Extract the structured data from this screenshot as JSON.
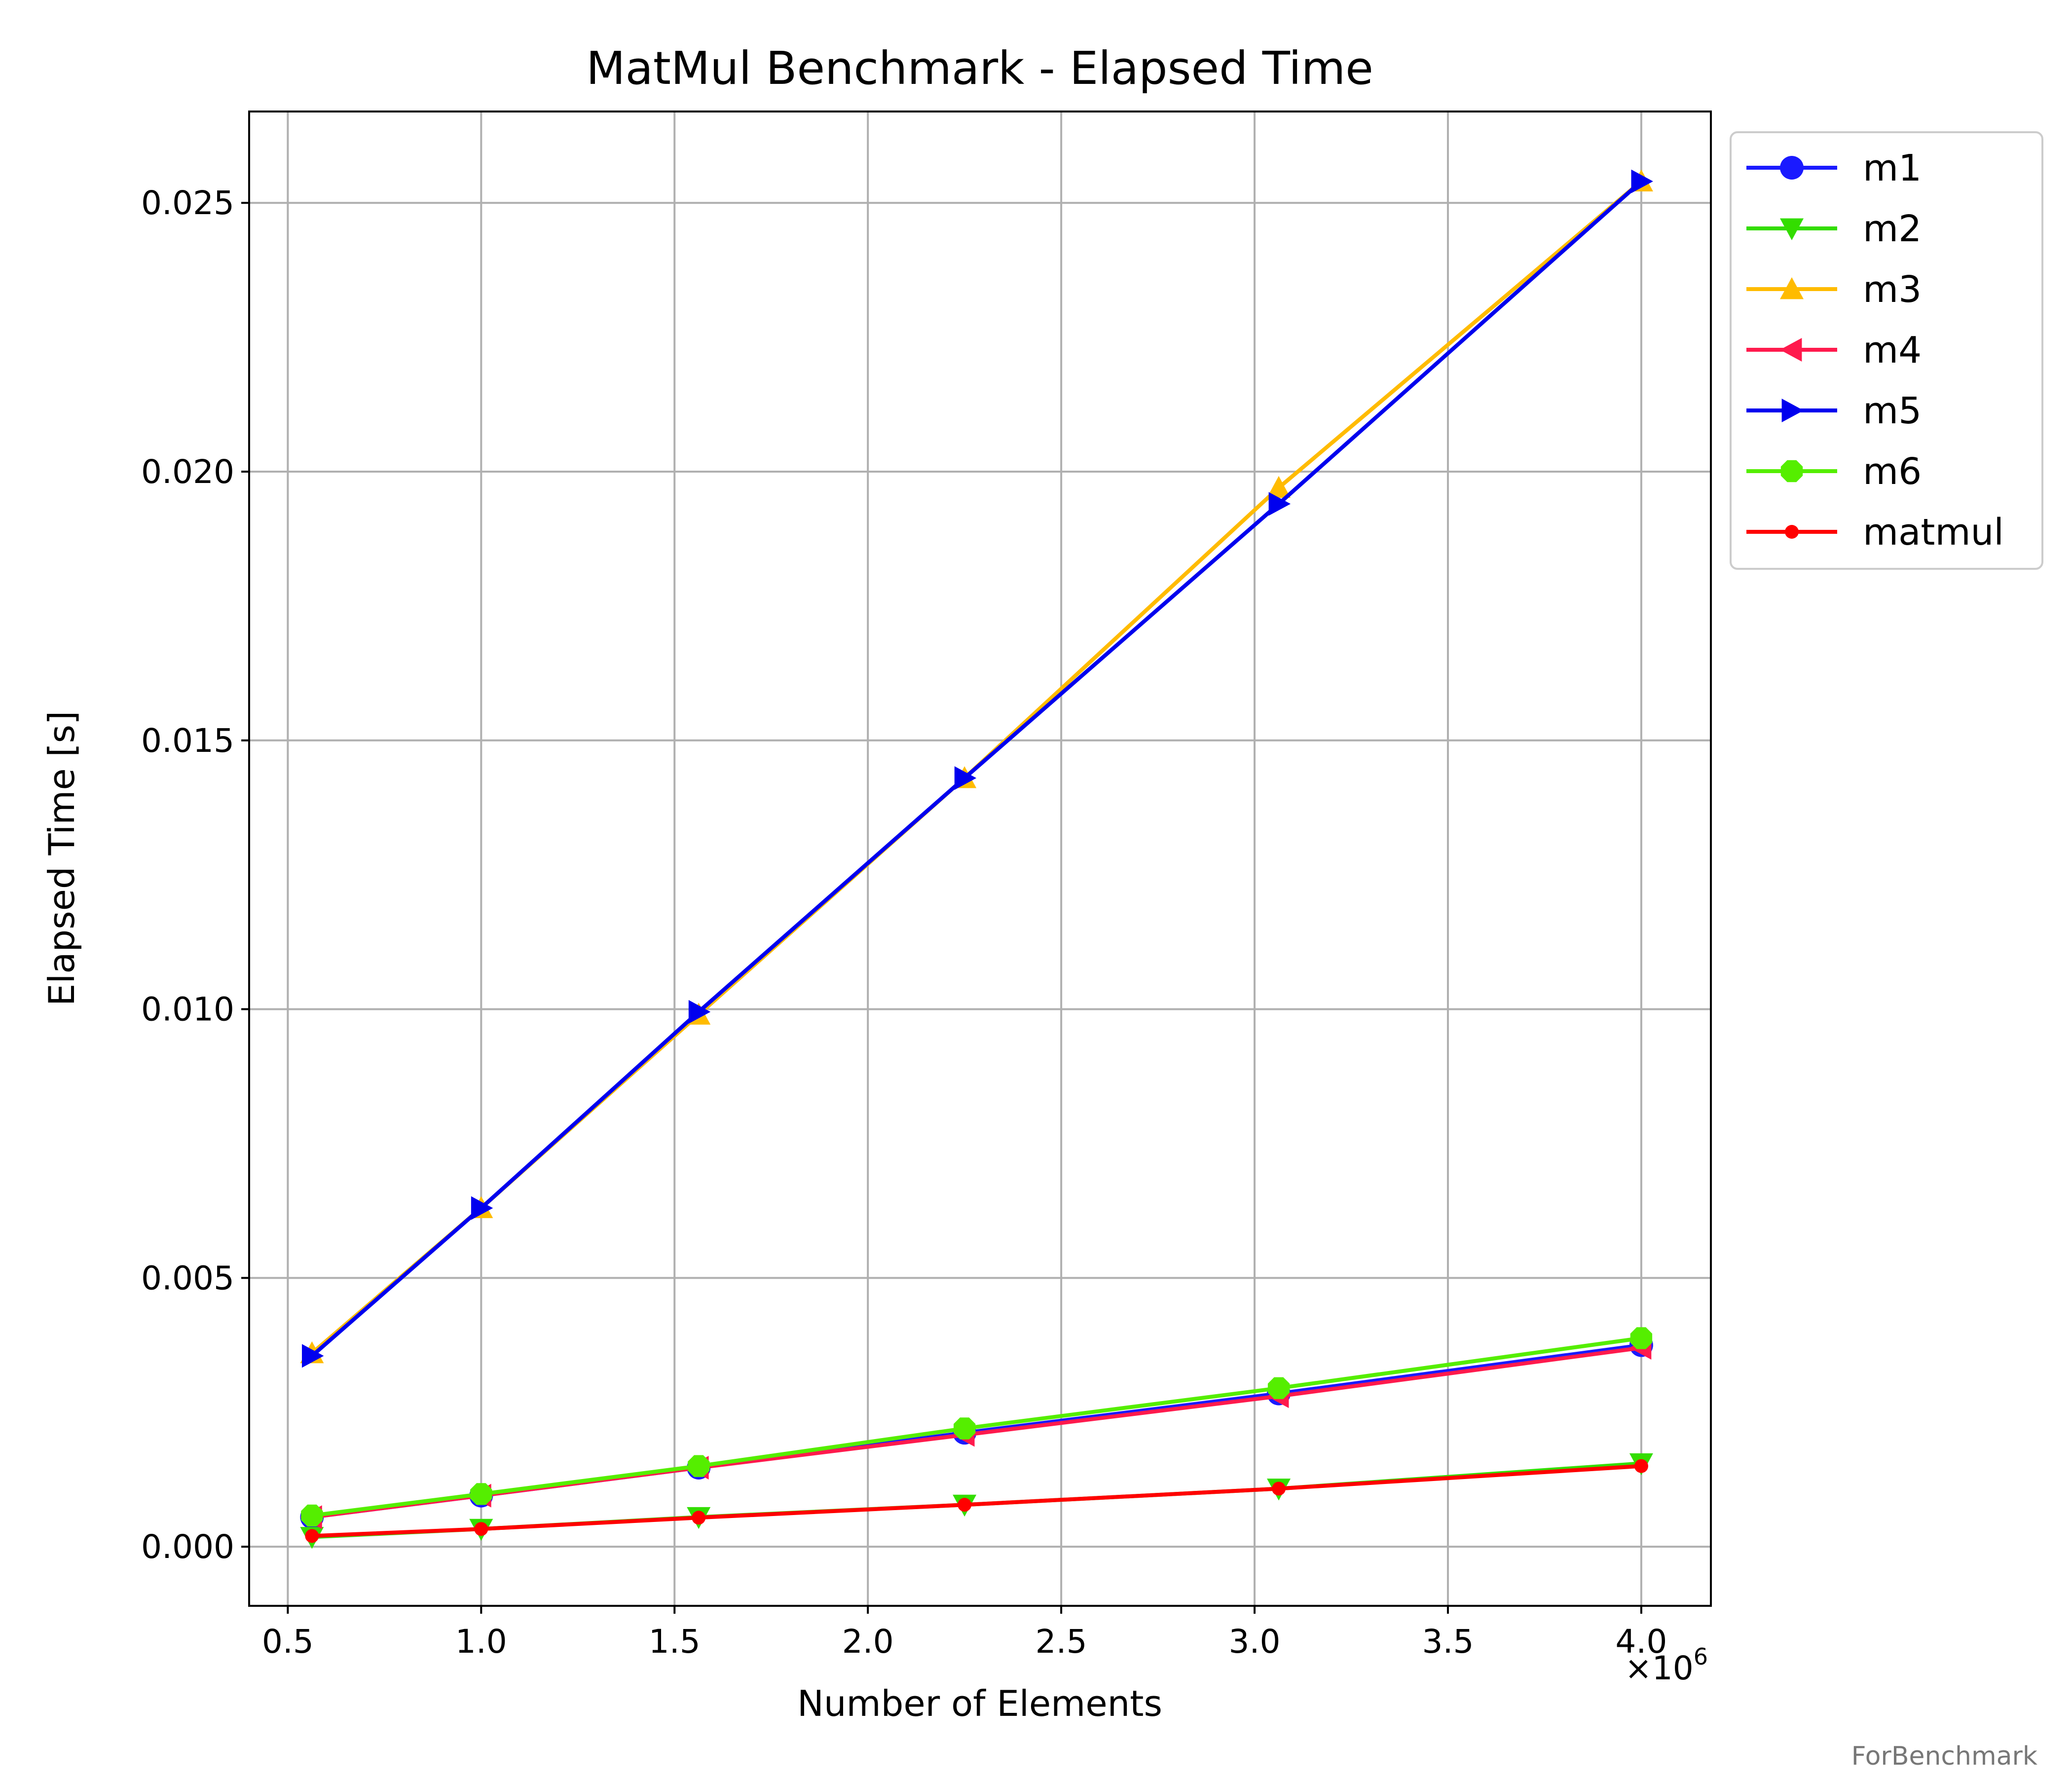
{
  "chart_data": {
    "type": "line",
    "title": "MatMul Benchmark - Elapsed Time",
    "xlabel": "Number of Elements",
    "ylabel": "Elapsed Time [s]",
    "x_multiplier_label": "×10",
    "x_multiplier_exponent": "6",
    "x_scale": 1000000,
    "xlim": [
      0.4,
      4.18
    ],
    "ylim": [
      -0.0011,
      0.0267
    ],
    "x_ticks": [
      0.5,
      1.0,
      1.5,
      2.0,
      2.5,
      3.0,
      3.5,
      4.0
    ],
    "x_tick_labels": [
      "0.5",
      "1.0",
      "1.5",
      "2.0",
      "2.5",
      "3.0",
      "3.5",
      "4.0"
    ],
    "y_ticks": [
      0.0,
      0.005,
      0.01,
      0.015,
      0.02,
      0.025
    ],
    "y_tick_labels": [
      "0.000",
      "0.005",
      "0.010",
      "0.015",
      "0.020",
      "0.025"
    ],
    "grid": true,
    "legend_position": "outside-right-top",
    "x": [
      562500,
      1000000,
      1562500,
      2250000,
      3062500,
      4000000
    ],
    "series": [
      {
        "name": "m1",
        "color": "#1a1aff",
        "marker": "circle",
        "values": [
          0.00055,
          0.00095,
          0.00147,
          0.00212,
          0.00285,
          0.00375
        ]
      },
      {
        "name": "m2",
        "color": "#33dd00",
        "marker": "triangle-down",
        "values": [
          0.00018,
          0.00033,
          0.00055,
          0.00078,
          0.00108,
          0.00155
        ]
      },
      {
        "name": "m3",
        "color": "#ffbb00",
        "marker": "triangle-up",
        "values": [
          0.0036,
          0.0063,
          0.0099,
          0.0143,
          0.0197,
          0.0254
        ]
      },
      {
        "name": "m4",
        "color": "#ff1a4d",
        "marker": "triangle-left",
        "values": [
          0.00055,
          0.00095,
          0.00147,
          0.00208,
          0.0028,
          0.0037
        ]
      },
      {
        "name": "m5",
        "color": "#0000ee",
        "marker": "triangle-right",
        "values": [
          0.00355,
          0.0063,
          0.00995,
          0.0143,
          0.0194,
          0.0254
        ]
      },
      {
        "name": "m6",
        "color": "#55ee00",
        "marker": "octagon",
        "values": [
          0.00058,
          0.00098,
          0.0015,
          0.0022,
          0.00295,
          0.00388
        ]
      },
      {
        "name": "matmul",
        "color": "#ff0000",
        "marker": "dot",
        "values": [
          0.0002,
          0.00033,
          0.00054,
          0.00078,
          0.00108,
          0.0015
        ]
      }
    ]
  },
  "watermark": "ForBenchmark"
}
